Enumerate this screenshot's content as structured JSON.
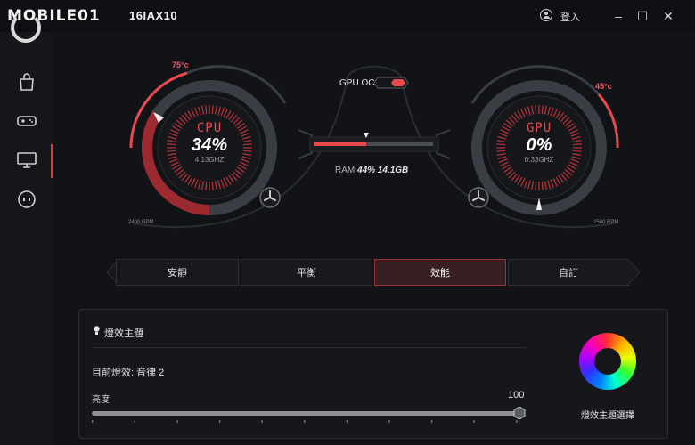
{
  "app": {
    "brand": "MOBILE01",
    "model": "16IAX10",
    "login_label": "登入",
    "window_controls": [
      "minimize",
      "maximize",
      "close"
    ]
  },
  "sidebar": {
    "items": [
      {
        "name": "store",
        "icon": "shopping-bag-icon"
      },
      {
        "name": "gaming",
        "icon": "gamepad-icon"
      },
      {
        "name": "display",
        "icon": "monitor-icon",
        "active": true
      },
      {
        "name": "device",
        "icon": "device-face-icon"
      }
    ]
  },
  "gauges": {
    "cpu": {
      "title": "CPU",
      "usage": "34%",
      "clock": "4.13GHZ",
      "temp": "75°c",
      "fan": "2400 RPM",
      "usage_fraction": 0.34
    },
    "gpu": {
      "title": "GPU",
      "usage": "0%",
      "clock": "0.33GHZ",
      "temp": "45°c",
      "fan": "2500 RPM",
      "usage_fraction": 0.0
    }
  },
  "gpu_oc": {
    "label": "GPU OC",
    "enabled": true
  },
  "ram": {
    "label": "RAM",
    "value": "44% 14.1GB",
    "fraction": 0.44
  },
  "modes": {
    "items": [
      "安靜",
      "平衡",
      "效能",
      "自訂"
    ],
    "active_index": 2
  },
  "lighting": {
    "title": "燈效主題",
    "current_effect": "目前燈效: 音律 2",
    "brightness_label": "亮度",
    "brightness_value": "100",
    "brightness_fraction": 1.0,
    "theme_select_label": "燈效主題選擇"
  },
  "colors": {
    "accent": "#e84a50",
    "background": "#111317",
    "panel": "#15171b"
  }
}
